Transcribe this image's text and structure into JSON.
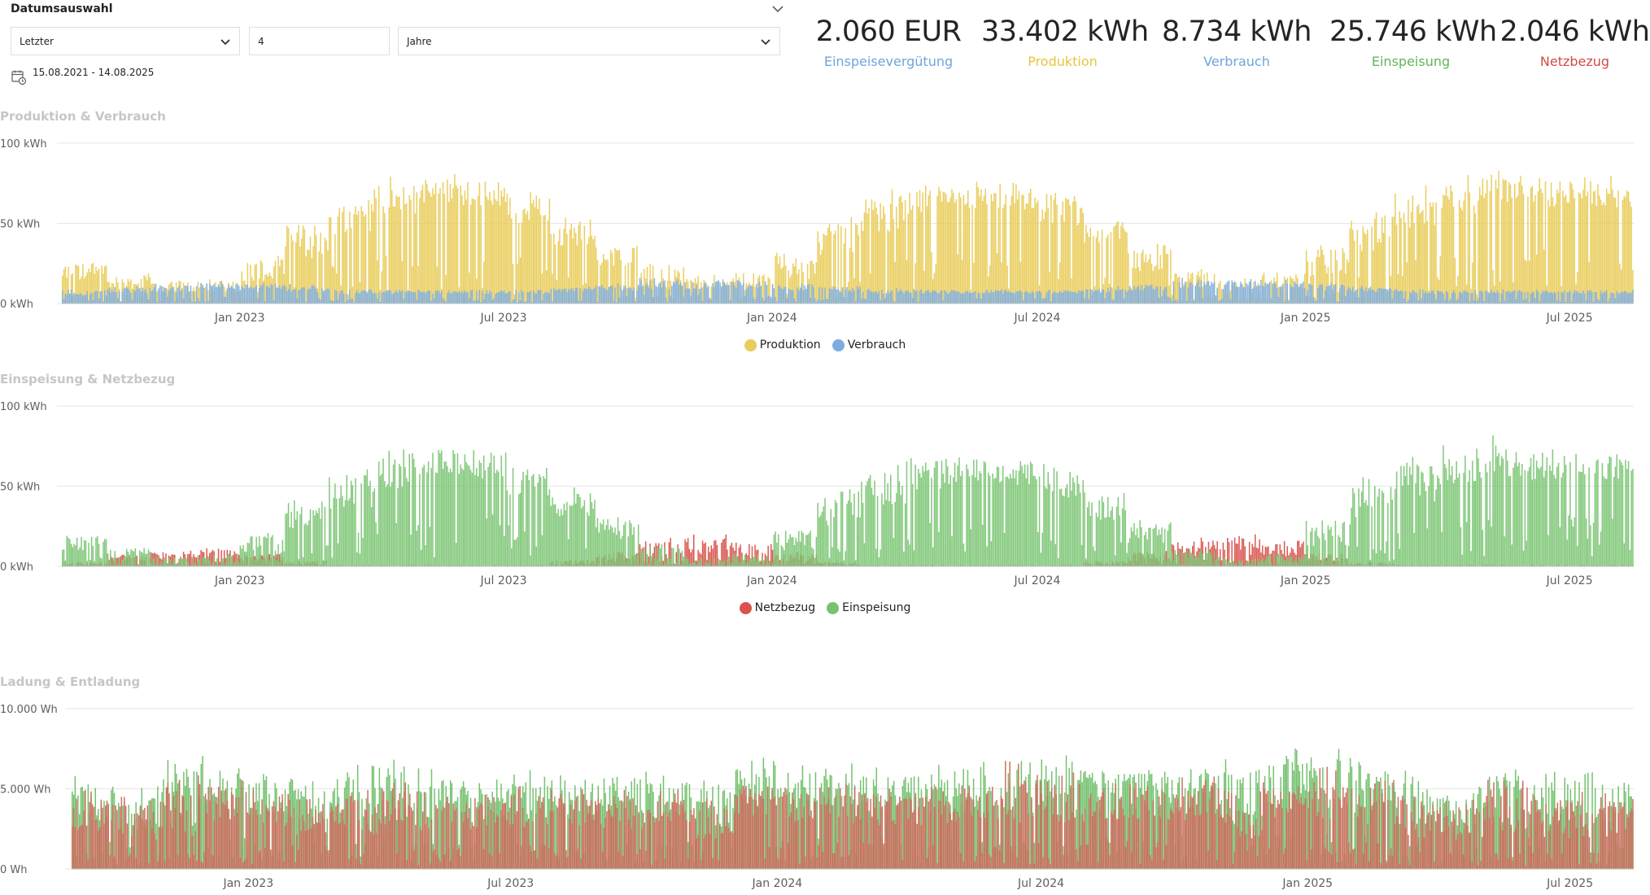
{
  "slicer": {
    "title": "Datumsauswahl",
    "period_value": "Letzter",
    "count_value": "4",
    "unit_value": "Jahre",
    "date_range": "15.08.2021 - 14.08.2025",
    "collapse_icon": "chevron-down-icon",
    "calendar_icon": "calendar-icon"
  },
  "kpis": [
    {
      "value": "2.060 EUR",
      "label": "Einspeisevergütung",
      "color": "#6ea5dc"
    },
    {
      "value": "33.402 kWh",
      "label": "Produktion",
      "color": "#e8c53e"
    },
    {
      "value": "8.734 kWh",
      "label": "Verbrauch",
      "color": "#6ea5dc"
    },
    {
      "value": "25.746 kWh",
      "label": "Einspeisung",
      "color": "#62b55b"
    },
    {
      "value": "2.046 kWh",
      "label": "Netzbezug",
      "color": "#d24b43"
    }
  ],
  "colors": {
    "produktion": "#e9cc5a",
    "verbrauch": "#7dade0",
    "einspeisung": "#77c36f",
    "netzbezug": "#d9534c",
    "ladung": "#6fbf68",
    "entladung": "#c96a5a",
    "gridline": "#e6e6e6",
    "axis_text": "#605e5c"
  },
  "chart_data": [
    {
      "type": "bar",
      "title": "Produktion & Verbrauch",
      "x_range": [
        "2022-09-01",
        "2025-08-14"
      ],
      "x_ticks": [
        "Jan 2023",
        "Jul 2023",
        "Jan 2024",
        "Jul 2024",
        "Jan 2025",
        "Jul 2025"
      ],
      "y_ticks": [
        "100 kWh",
        "50 kWh",
        "0 kWh"
      ],
      "ylim": [
        0,
        100
      ],
      "unit": "kWh",
      "series": [
        {
          "name": "Produktion",
          "color": "#e9cc5a",
          "monthly_avg": [
            14,
            9,
            6,
            7,
            14,
            28,
            42,
            55,
            62,
            60,
            50,
            36,
            22,
            10,
            7,
            8,
            15,
            30,
            44,
            54,
            58,
            57,
            48,
            34,
            20,
            10,
            6,
            8,
            16,
            32,
            46,
            56,
            62,
            60
          ],
          "monthly_max": [
            28,
            20,
            15,
            16,
            30,
            52,
            68,
            80,
            82,
            80,
            70,
            55,
            40,
            25,
            18,
            20,
            32,
            55,
            72,
            78,
            78,
            76,
            70,
            55,
            38,
            22,
            16,
            20,
            38,
            60,
            75,
            82,
            86,
            80
          ]
        },
        {
          "name": "Verbrauch",
          "color": "#7dade0",
          "monthly_avg": [
            5,
            6,
            7,
            8,
            8,
            7,
            6,
            6,
            6,
            6,
            6,
            7,
            8,
            9,
            9,
            9,
            8,
            7,
            6,
            6,
            6,
            6,
            6,
            7,
            8,
            9,
            9,
            9,
            8,
            7,
            6,
            6,
            6,
            6
          ],
          "monthly_max": [
            9,
            11,
            13,
            14,
            13,
            12,
            10,
            9,
            9,
            9,
            9,
            11,
            13,
            16,
            15,
            15,
            13,
            11,
            10,
            9,
            9,
            9,
            9,
            11,
            13,
            16,
            16,
            15,
            13,
            11,
            9,
            9,
            9,
            9
          ]
        }
      ],
      "legend": [
        "Produktion",
        "Verbrauch"
      ]
    },
    {
      "type": "bar",
      "title": "Einspeisung & Netzbezug",
      "x_range": [
        "2022-09-01",
        "2025-08-14"
      ],
      "x_ticks": [
        "Jan 2023",
        "Jul 2023",
        "Jan 2024",
        "Jul 2024",
        "Jan 2025",
        "Jul 2025"
      ],
      "y_ticks": [
        "100 kWh",
        "50 kWh",
        "0 kWh"
      ],
      "ylim": [
        0,
        100
      ],
      "unit": "kWh",
      "series": [
        {
          "name": "Netzbezug",
          "color": "#d9534c",
          "monthly_avg": [
            1,
            3,
            4,
            5,
            3,
            1,
            0,
            0,
            0,
            0,
            0,
            1,
            3,
            6,
            7,
            6,
            3,
            1,
            0,
            0,
            0,
            0,
            0,
            1,
            3,
            7,
            7,
            6,
            3,
            1,
            0,
            0,
            0,
            0
          ],
          "monthly_max": [
            3,
            8,
            10,
            12,
            8,
            4,
            1,
            1,
            1,
            1,
            1,
            4,
            9,
            18,
            20,
            16,
            9,
            3,
            1,
            1,
            1,
            1,
            1,
            4,
            10,
            18,
            20,
            16,
            9,
            3,
            1,
            1,
            1,
            1
          ]
        },
        {
          "name": "Einspeisung",
          "color": "#77c36f",
          "monthly_avg": [
            10,
            4,
            1,
            2,
            8,
            22,
            36,
            48,
            56,
            54,
            44,
            30,
            16,
            4,
            1,
            2,
            10,
            24,
            38,
            48,
            52,
            50,
            42,
            28,
            14,
            3,
            1,
            2,
            10,
            26,
            40,
            50,
            56,
            54
          ],
          "monthly_max": [
            22,
            12,
            6,
            8,
            22,
            45,
            62,
            74,
            77,
            76,
            66,
            50,
            32,
            14,
            6,
            8,
            26,
            50,
            66,
            72,
            74,
            70,
            64,
            48,
            30,
            12,
            6,
            8,
            30,
            56,
            70,
            78,
            82,
            74
          ]
        }
      ],
      "legend": [
        "Netzbezug",
        "Einspeisung"
      ]
    },
    {
      "type": "bar",
      "title": "Ladung & Entladung",
      "x_range": [
        "2022-09-01",
        "2025-08-14"
      ],
      "x_ticks": [
        "Jan 2023",
        "Jul 2023",
        "Jan 2024",
        "Jul 2024",
        "Jan 2025",
        "Jul 2025"
      ],
      "y_ticks": [
        "10.000 Wh",
        "5.000 Wh",
        "0 Wh"
      ],
      "ylim": [
        0,
        10000
      ],
      "unit": "Wh",
      "series": [
        {
          "name": "Ladung",
          "color": "#6fbf68",
          "monthly_avg": [
            3000,
            2400,
            2600,
            3600,
            3400,
            2800,
            2800,
            2900,
            3000,
            3000,
            3200,
            3400,
            3200,
            3000,
            2600,
            3800,
            3700,
            3600,
            3400,
            3400,
            3400,
            3500,
            3600,
            3700,
            3700,
            3700,
            2600,
            3800,
            3700,
            3500,
            2400,
            2300,
            2400,
            2600
          ],
          "monthly_max": [
            6000,
            5200,
            7200,
            6600,
            6200,
            5600,
            6600,
            7000,
            6400,
            6000,
            6600,
            6400,
            6400,
            6200,
            5600,
            7000,
            6800,
            6600,
            6400,
            6600,
            6800,
            7000,
            7200,
            7000,
            6800,
            7000,
            7000,
            7600,
            7800,
            6800,
            6200,
            5400,
            7000,
            6200
          ]
        },
        {
          "name": "Entladung",
          "color": "#c96a5a",
          "monthly_avg": [
            2200,
            1800,
            2000,
            2900,
            2700,
            2100,
            2100,
            2200,
            2300,
            2300,
            2500,
            2700,
            2500,
            2300,
            1900,
            3000,
            2900,
            2800,
            2700,
            2700,
            2700,
            2800,
            2900,
            3000,
            3000,
            3000,
            1900,
            3100,
            3000,
            2800,
            1800,
            1700,
            1800,
            1900
          ],
          "monthly_max": [
            5000,
            4500,
            6000,
            5600,
            5200,
            4600,
            5400,
            5600,
            5000,
            4800,
            5400,
            5200,
            5200,
            5000,
            4400,
            5800,
            5600,
            5400,
            5200,
            5400,
            5600,
            6800,
            6200,
            5800,
            5600,
            5800,
            5800,
            6200,
            6400,
            5600,
            5000,
            4400,
            5800,
            5000
          ]
        }
      ],
      "legend": []
    }
  ]
}
